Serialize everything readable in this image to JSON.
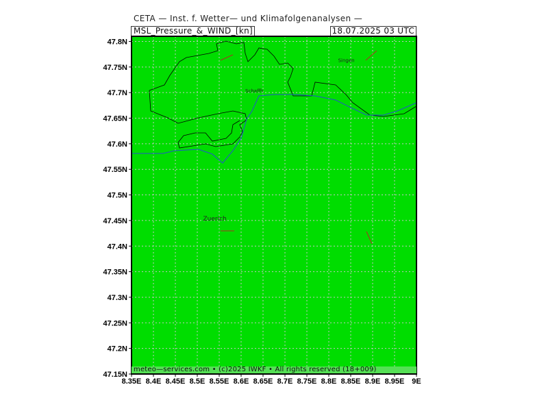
{
  "header": {
    "title": "CETA — Inst. f. Wetter— und Klimafolgenanalysen —",
    "product": "MSL_Pressure_&_WIND_[kn]",
    "valid_time": "18.07.2025  03  UTC"
  },
  "footer": {
    "credit": "meteo—services.com • (c)2025 IWKF • All rights reserved (18+009)"
  },
  "map": {
    "background_color": "#00dd00",
    "grid_color": "#c8c8c8",
    "border_color": "#000000",
    "river_color": "#2255cc",
    "wind_barb_color": "#aa3322",
    "lon_range": [
      8.35,
      9.0
    ],
    "lat_range": [
      47.15,
      47.81
    ],
    "x_ticks": [
      "8.35E",
      "8.4E",
      "8.45E",
      "8.5E",
      "8.55E",
      "8.6E",
      "8.65E",
      "8.7E",
      "8.75E",
      "8.8E",
      "8.85E",
      "8.9E",
      "8.95E",
      "9E"
    ],
    "y_ticks": [
      "47.8N",
      "47.75N",
      "47.7N",
      "47.65N",
      "47.6N",
      "47.55N",
      "47.5N",
      "47.45N",
      "47.4N",
      "47.35N",
      "47.3N",
      "47.25N",
      "47.2N",
      "47.15N"
    ],
    "cities": [
      {
        "name": "Singen",
        "lon": 8.84,
        "lat": 47.76
      },
      {
        "name": "Schaffh",
        "lon": 8.63,
        "lat": 47.7
      },
      {
        "name": "Zuerich",
        "lon": 8.54,
        "lat": 47.45
      }
    ]
  }
}
